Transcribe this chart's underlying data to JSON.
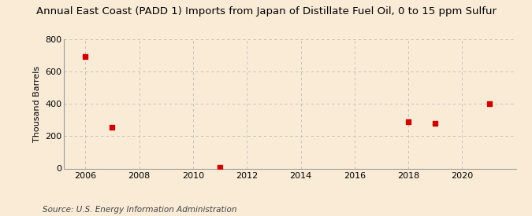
{
  "title": "Annual East Coast (PADD 1) Imports from Japan of Distillate Fuel Oil, 0 to 15 ppm Sulfur",
  "ylabel": "Thousand Barrels",
  "source": "Source: U.S. Energy Information Administration",
  "background_color": "#faebd7",
  "plot_background_color": "#faebd7",
  "data_points": [
    {
      "year": 2006,
      "value": 689
    },
    {
      "year": 2007,
      "value": 255
    },
    {
      "year": 2011,
      "value": 5
    },
    {
      "year": 2018,
      "value": 290
    },
    {
      "year": 2019,
      "value": 281
    },
    {
      "year": 2021,
      "value": 399
    }
  ],
  "marker_color": "#cc0000",
  "marker_size": 25,
  "marker_style": "s",
  "xlim": [
    2005.2,
    2022.0
  ],
  "ylim": [
    0,
    800
  ],
  "yticks": [
    0,
    200,
    400,
    600,
    800
  ],
  "xticks": [
    2006,
    2008,
    2010,
    2012,
    2014,
    2016,
    2018,
    2020
  ],
  "grid_color": "#bbbbbb",
  "grid_style": "--",
  "title_fontsize": 9.5,
  "label_fontsize": 8,
  "tick_fontsize": 8,
  "source_fontsize": 7.5
}
